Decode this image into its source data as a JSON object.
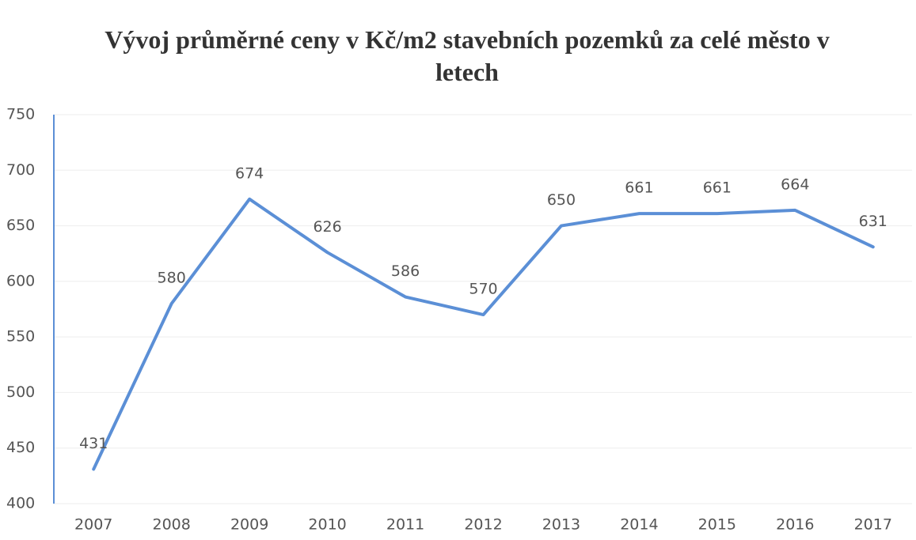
{
  "chart_data": {
    "type": "line",
    "title": "Vývoj průměrné ceny v Kč/m2 stavebních pozemků za celé město v letech",
    "categories": [
      "2007",
      "2008",
      "2009",
      "2010",
      "2011",
      "2012",
      "2013",
      "2014",
      "2015",
      "2016",
      "2017"
    ],
    "values": [
      431,
      580,
      674,
      626,
      586,
      570,
      650,
      661,
      661,
      664,
      631
    ],
    "color": "#5b8fd6",
    "ylim": [
      400,
      750
    ],
    "yticks": [
      400,
      450,
      500,
      550,
      600,
      650,
      700,
      750
    ],
    "grid": true
  }
}
